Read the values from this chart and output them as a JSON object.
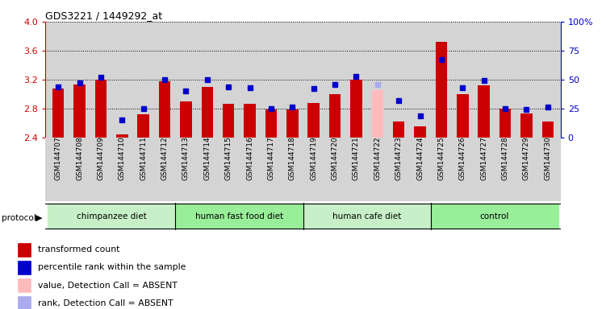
{
  "title": "GDS3221 / 1449292_at",
  "samples": [
    "GSM144707",
    "GSM144708",
    "GSM144709",
    "GSM144710",
    "GSM144711",
    "GSM144712",
    "GSM144713",
    "GSM144714",
    "GSM144715",
    "GSM144716",
    "GSM144717",
    "GSM144718",
    "GSM144719",
    "GSM144720",
    "GSM144721",
    "GSM144722",
    "GSM144723",
    "GSM144724",
    "GSM144725",
    "GSM144726",
    "GSM144727",
    "GSM144728",
    "GSM144729",
    "GSM144730"
  ],
  "red_values": [
    3.08,
    3.13,
    3.2,
    2.44,
    2.72,
    3.18,
    2.9,
    3.1,
    2.87,
    2.87,
    2.79,
    2.79,
    2.88,
    3.0,
    3.2,
    3.05,
    2.62,
    2.55,
    3.72,
    3.0,
    3.12,
    2.8,
    2.73,
    2.62
  ],
  "blue_values": [
    44,
    47,
    52,
    15,
    25,
    50,
    40,
    50,
    44,
    43,
    25,
    26,
    42,
    46,
    53,
    46,
    32,
    19,
    67,
    43,
    49,
    25,
    24,
    26
  ],
  "absent_indices": [
    15
  ],
  "baseline": 2.4,
  "ylim_left": [
    2.4,
    4.0
  ],
  "ylim_right": [
    0,
    100
  ],
  "left_ticks": [
    2.4,
    2.8,
    3.2,
    3.6,
    4.0
  ],
  "right_ticks": [
    0,
    25,
    50,
    75,
    100
  ],
  "groups": [
    {
      "label": "chimpanzee diet",
      "start": 0,
      "end": 5
    },
    {
      "label": "human fast food diet",
      "start": 6,
      "end": 11
    },
    {
      "label": "human cafe diet",
      "start": 12,
      "end": 17
    },
    {
      "label": "control",
      "start": 18,
      "end": 23
    }
  ],
  "group_colors": [
    "#c8f0c8",
    "#99ee99",
    "#c8f0c8",
    "#99ee99"
  ],
  "bar_color": "#cc0000",
  "absent_bar_color": "#ffbbbb",
  "blue_marker_color": "#0000cc",
  "absent_marker_color": "#aaaaee",
  "plot_bg_color": "#d4d4d4",
  "xtick_bg_color": "#d4d4d4",
  "legend_items": [
    {
      "color": "#cc0000",
      "label": "transformed count"
    },
    {
      "color": "#0000cc",
      "label": "percentile rank within the sample"
    },
    {
      "color": "#ffbbbb",
      "label": "value, Detection Call = ABSENT"
    },
    {
      "color": "#aaaaee",
      "label": "rank, Detection Call = ABSENT"
    }
  ]
}
